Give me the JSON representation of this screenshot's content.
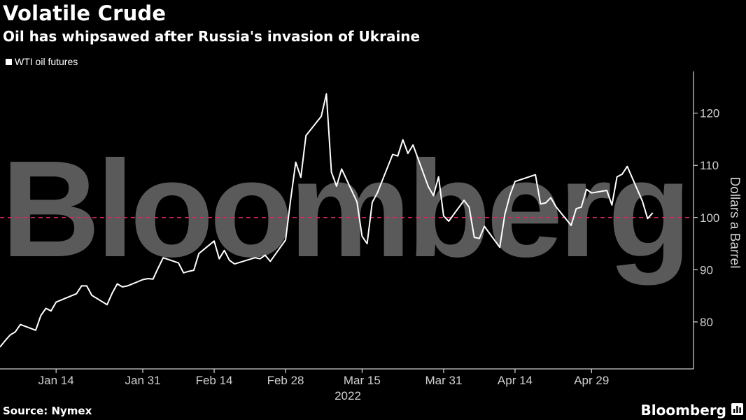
{
  "header": {
    "title": "Volatile Crude",
    "subtitle": "Oil has whipsawed after Russia's invasion of Ukraine"
  },
  "footer": {
    "source": "Source: Nymex",
    "brand": "Bloomberg",
    "brand_icon": "bar-chart-icon"
  },
  "colors": {
    "background": "#000000",
    "line": "#ffffff",
    "reference_line": "#e0245e",
    "watermark": "#5a5a5a"
  },
  "watermark": "Bloomberg",
  "chart_data": {
    "type": "line",
    "legend": [
      "WTI oil futures"
    ],
    "legend_position": "top-left",
    "ylabel": "Dollars a Barrel",
    "ylim": [
      71,
      128
    ],
    "yticks": [
      80,
      90,
      100,
      110,
      120
    ],
    "xlabel": "2022",
    "xticks": [
      "Jan 14",
      "Jan 31",
      "Feb 14",
      "Feb 28",
      "Mar 15",
      "Mar 31",
      "Apr 14",
      "Apr 29"
    ],
    "xtick_dates": [
      "2022-01-14",
      "2022-01-31",
      "2022-02-14",
      "2022-02-28",
      "2022-03-15",
      "2022-03-31",
      "2022-04-14",
      "2022-04-29"
    ],
    "xlim": [
      "2022-01-03",
      "2022-05-19"
    ],
    "reference_line": {
      "y": 100,
      "style": "dashed"
    },
    "series": [
      {
        "name": "WTI oil futures",
        "x": [
          "2022-01-03",
          "2022-01-04",
          "2022-01-05",
          "2022-01-06",
          "2022-01-07",
          "2022-01-10",
          "2022-01-11",
          "2022-01-12",
          "2022-01-13",
          "2022-01-14",
          "2022-01-18",
          "2022-01-19",
          "2022-01-20",
          "2022-01-21",
          "2022-01-24",
          "2022-01-25",
          "2022-01-26",
          "2022-01-27",
          "2022-01-28",
          "2022-01-31",
          "2022-02-01",
          "2022-02-02",
          "2022-02-03",
          "2022-02-04",
          "2022-02-07",
          "2022-02-08",
          "2022-02-09",
          "2022-02-10",
          "2022-02-11",
          "2022-02-14",
          "2022-02-15",
          "2022-02-16",
          "2022-02-17",
          "2022-02-18",
          "2022-02-22",
          "2022-02-23",
          "2022-02-24",
          "2022-02-25",
          "2022-02-28",
          "2022-03-01",
          "2022-03-02",
          "2022-03-03",
          "2022-03-04",
          "2022-03-07",
          "2022-03-08",
          "2022-03-09",
          "2022-03-10",
          "2022-03-11",
          "2022-03-14",
          "2022-03-15",
          "2022-03-16",
          "2022-03-17",
          "2022-03-18",
          "2022-03-21",
          "2022-03-22",
          "2022-03-23",
          "2022-03-24",
          "2022-03-25",
          "2022-03-28",
          "2022-03-29",
          "2022-03-30",
          "2022-03-31",
          "2022-04-01",
          "2022-04-04",
          "2022-04-05",
          "2022-04-06",
          "2022-04-07",
          "2022-04-08",
          "2022-04-11",
          "2022-04-12",
          "2022-04-13",
          "2022-04-14",
          "2022-04-18",
          "2022-04-19",
          "2022-04-20",
          "2022-04-21",
          "2022-04-22",
          "2022-04-25",
          "2022-04-26",
          "2022-04-27",
          "2022-04-28",
          "2022-04-29",
          "2022-05-02",
          "2022-05-03",
          "2022-05-04",
          "2022-05-05",
          "2022-05-06",
          "2022-05-09",
          "2022-05-10",
          "2022-05-11"
        ],
        "values": [
          75.2,
          76.4,
          77.5,
          78.1,
          79.5,
          78.4,
          81.2,
          82.6,
          82.1,
          83.8,
          85.4,
          86.9,
          86.9,
          85.1,
          83.3,
          85.5,
          87.3,
          86.7,
          86.9,
          88.1,
          88.3,
          88.2,
          90.3,
          92.3,
          91.3,
          89.4,
          89.7,
          89.9,
          93.1,
          95.5,
          92.1,
          93.7,
          91.8,
          91.1,
          92.3,
          92.1,
          92.8,
          91.6,
          95.7,
          103.4,
          110.6,
          107.7,
          115.7,
          119.4,
          123.7,
          108.7,
          106.0,
          109.3,
          103.0,
          96.4,
          95.0,
          102.9,
          104.7,
          112.1,
          111.8,
          114.9,
          112.3,
          113.9,
          105.9,
          104.2,
          107.8,
          100.3,
          99.3,
          103.3,
          102.0,
          96.2,
          96.0,
          98.3,
          94.3,
          100.6,
          104.3,
          106.9,
          108.2,
          102.6,
          102.8,
          103.8,
          102.1,
          98.5,
          101.7,
          102.0,
          105.4,
          104.7,
          105.2,
          102.4,
          107.8,
          108.3,
          109.8,
          103.1,
          99.8,
          100.9
        ]
      }
    ]
  }
}
